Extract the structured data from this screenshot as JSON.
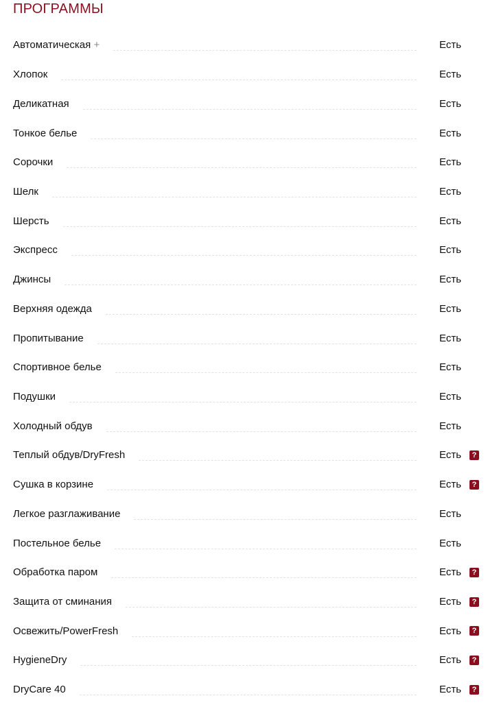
{
  "section": {
    "title": "ПРОГРАММЫ"
  },
  "help_color": "#8b0e1f",
  "help_glyph": "?",
  "programs": [
    {
      "label": "Автоматическая",
      "suffix": "+",
      "value": "Есть",
      "help": false
    },
    {
      "label": "Хлопок",
      "value": "Есть",
      "help": false
    },
    {
      "label": "Деликатная",
      "value": "Есть",
      "help": false
    },
    {
      "label": "Тонкое белье",
      "value": "Есть",
      "help": false
    },
    {
      "label": "Сорочки",
      "value": "Есть",
      "help": false
    },
    {
      "label": "Шелк",
      "value": "Есть",
      "help": false
    },
    {
      "label": "Шерсть",
      "value": "Есть",
      "help": false
    },
    {
      "label": "Экспресс",
      "value": "Есть",
      "help": false
    },
    {
      "label": "Джинсы",
      "value": "Есть",
      "help": false
    },
    {
      "label": "Верхняя одежда",
      "value": "Есть",
      "help": false
    },
    {
      "label": "Пропитывание",
      "value": "Есть",
      "help": false
    },
    {
      "label": "Спортивное белье",
      "value": "Есть",
      "help": false
    },
    {
      "label": "Подушки",
      "value": "Есть",
      "help": false
    },
    {
      "label": "Холодный обдув",
      "value": "Есть",
      "help": false
    },
    {
      "label": "Теплый обдув/DryFresh",
      "value": "Есть",
      "help": true
    },
    {
      "label": "Сушка в корзине",
      "value": "Есть",
      "help": true
    },
    {
      "label": "Легкое разглаживание",
      "value": "Есть",
      "help": false
    },
    {
      "label": "Постельное белье",
      "value": "Есть",
      "help": false
    },
    {
      "label": "Обработка паром",
      "value": "Есть",
      "help": true
    },
    {
      "label": "Защита от сминания",
      "value": "Есть",
      "help": true
    },
    {
      "label": "Освежить/PowerFresh",
      "value": "Есть",
      "help": true
    },
    {
      "label": "HygieneDry",
      "value": "Есть",
      "help": true
    },
    {
      "label": "DryCare 40",
      "value": "Есть",
      "help": true
    }
  ]
}
